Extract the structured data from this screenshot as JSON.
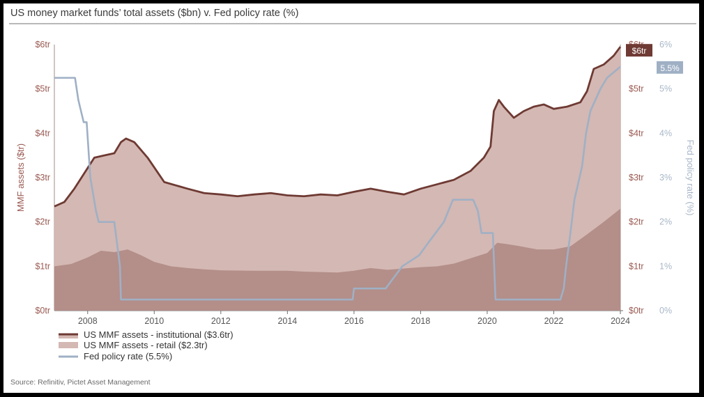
{
  "title": "US money market funds’ total assets ($bn) v. Fed policy rate (%)",
  "source": "Source: Refinitiv, Pictet Asset Management",
  "colors": {
    "institutional_line": "#6e3a33",
    "total_area": "#d4b8b3",
    "retail_area": "#b48e89",
    "fed_line": "#9fb0c5",
    "badge_assets": "#6e3a33",
    "badge_rate": "#9fb0c5"
  },
  "chart_data": {
    "type": "area",
    "ylabel": "MMF assets ($tr)",
    "y2label": "Fed policy rate (%)",
    "ylim": [
      0,
      6
    ],
    "y2lim": [
      0,
      6
    ],
    "xlim": [
      2007.0,
      2024.0
    ],
    "x_ticks": [
      "2008",
      "2010",
      "2012",
      "2014",
      "2016",
      "2018",
      "2020",
      "2022",
      "2024"
    ],
    "y_ticks_left": [
      "$0tr",
      "$1tr",
      "$2tr",
      "$3tr",
      "$4tr",
      "$5tr",
      "$6tr"
    ],
    "y_ticks_right": [
      "$0tr",
      "$1tr",
      "$2tr",
      "$3tr",
      "$4tr",
      "$5tr",
      "$6tr"
    ],
    "y2_ticks": [
      "0%",
      "1%",
      "2%",
      "3%",
      "4%",
      "5%",
      "6%"
    ],
    "end_labels": {
      "assets": "$6tr",
      "rate": "5.5%"
    },
    "legend_position": "bottom-left",
    "series": [
      {
        "name": "US MMF assets - institutional ($3.6tr)",
        "kind": "line",
        "x": [
          2007.0,
          2007.3,
          2007.6,
          2007.9,
          2008.2,
          2008.5,
          2008.8,
          2009.0,
          2009.15,
          2009.4,
          2009.8,
          2010.3,
          2011.0,
          2011.5,
          2012.0,
          2012.5,
          2013.0,
          2013.5,
          2014.0,
          2014.5,
          2015.0,
          2015.5,
          2016.0,
          2016.5,
          2017.0,
          2017.5,
          2018.0,
          2018.5,
          2019.0,
          2019.5,
          2019.9,
          2020.1,
          2020.2,
          2020.35,
          2020.5,
          2020.8,
          2021.1,
          2021.4,
          2021.7,
          2022.0,
          2022.4,
          2022.8,
          2023.0,
          2023.2,
          2023.5,
          2023.8,
          2024.0
        ],
        "values": [
          2.35,
          2.45,
          2.75,
          3.1,
          3.45,
          3.5,
          3.55,
          3.8,
          3.88,
          3.8,
          3.45,
          2.9,
          2.75,
          2.65,
          2.62,
          2.58,
          2.62,
          2.65,
          2.6,
          2.58,
          2.62,
          2.6,
          2.68,
          2.75,
          2.68,
          2.62,
          2.75,
          2.85,
          2.95,
          3.15,
          3.45,
          3.7,
          4.5,
          4.75,
          4.6,
          4.35,
          4.5,
          4.6,
          4.65,
          4.55,
          4.6,
          4.7,
          4.95,
          5.45,
          5.55,
          5.75,
          5.95
        ]
      },
      {
        "name": "US MMF assets - retail ($2.3tr)",
        "kind": "area",
        "x": [
          2007.0,
          2007.5,
          2008.0,
          2008.4,
          2008.8,
          2009.2,
          2009.6,
          2010.0,
          2010.5,
          2011.0,
          2011.5,
          2012.0,
          2013.0,
          2014.0,
          2014.5,
          2015.0,
          2015.5,
          2016.0,
          2016.5,
          2017.0,
          2017.5,
          2018.0,
          2018.5,
          2019.0,
          2019.5,
          2020.0,
          2020.3,
          2020.6,
          2021.0,
          2021.5,
          2022.0,
          2022.5,
          2023.0,
          2023.5,
          2024.0
        ],
        "values": [
          1.0,
          1.05,
          1.2,
          1.35,
          1.32,
          1.38,
          1.25,
          1.1,
          1.0,
          0.96,
          0.93,
          0.91,
          0.9,
          0.9,
          0.88,
          0.87,
          0.86,
          0.9,
          0.96,
          0.92,
          0.95,
          0.98,
          1.0,
          1.06,
          1.18,
          1.3,
          1.53,
          1.5,
          1.45,
          1.38,
          1.38,
          1.45,
          1.72,
          2.0,
          2.3
        ]
      },
      {
        "name": "Fed policy rate (5.5%)",
        "kind": "step",
        "x": [
          2007.0,
          2007.62,
          2007.72,
          2007.8,
          2007.88,
          2007.97,
          2008.08,
          2008.25,
          2008.33,
          2008.8,
          2008.97,
          2009.0,
          2015.96,
          2016.0,
          2016.95,
          2017.2,
          2017.45,
          2017.96,
          2018.2,
          2018.45,
          2018.7,
          2018.97,
          2019.58,
          2019.72,
          2019.83,
          2020.17,
          2020.25,
          2022.2,
          2022.3,
          2022.37,
          2022.5,
          2022.62,
          2022.85,
          2022.97,
          2023.1,
          2023.25,
          2023.4,
          2023.6,
          2024.0
        ],
        "values": [
          5.25,
          5.25,
          4.75,
          4.5,
          4.25,
          4.25,
          3.0,
          2.25,
          2.0,
          2.0,
          1.0,
          0.25,
          0.25,
          0.5,
          0.5,
          0.75,
          1.0,
          1.25,
          1.5,
          1.75,
          2.0,
          2.5,
          2.5,
          2.25,
          1.75,
          1.75,
          0.25,
          0.25,
          0.5,
          1.0,
          1.75,
          2.5,
          3.25,
          4.0,
          4.5,
          4.75,
          5.0,
          5.25,
          5.5
        ]
      }
    ]
  }
}
